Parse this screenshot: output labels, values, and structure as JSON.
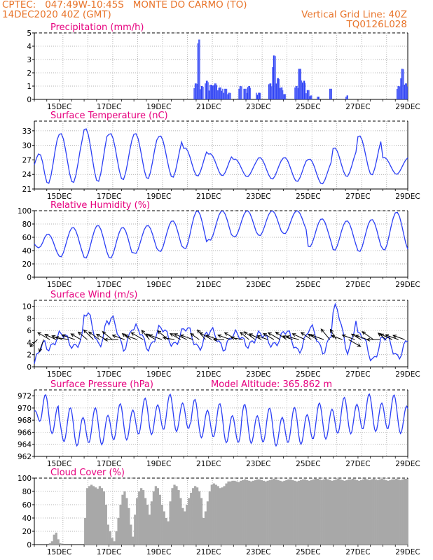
{
  "header": {
    "line1_left": "CPTEC:   047:49W-10:45S   MONTE DO CARMO (TO)",
    "line2_left": "14DEC2020 40Z (GMT)",
    "line2_right": "Vertical Grid Line: 40Z",
    "line3_right": "TQ0126L028"
  },
  "colors": {
    "header": "#e8742a",
    "title": "#e6007e",
    "series": "#2b3ff5",
    "bars": "#2b3ff5",
    "cloud": "#a8a8a8",
    "arrow": "#000000",
    "grid": "#9a9a9a"
  },
  "chart_data": [
    {
      "id": "precip",
      "type": "bar",
      "title": "Precipitation (mm/h)",
      "ylim": [
        0,
        5
      ],
      "yticks": [
        0,
        1,
        2,
        3,
        4,
        5
      ],
      "x_start_day": 14.0,
      "x_end_day": 29.0,
      "step_hours": 1,
      "xticks": [
        "15DEC",
        "17DEC",
        "19DEC",
        "21DEC",
        "23DEC",
        "25DEC",
        "27DEC",
        "29DEC"
      ],
      "events": [
        [
          20.4,
          20.55,
          1.2
        ],
        [
          20.55,
          20.65,
          4.5
        ],
        [
          20.65,
          20.8,
          1.0
        ],
        [
          20.85,
          21.0,
          1.4
        ],
        [
          21.0,
          21.15,
          1.1
        ],
        [
          21.15,
          21.35,
          1.2
        ],
        [
          21.35,
          21.55,
          0.9
        ],
        [
          21.55,
          21.75,
          0.8
        ],
        [
          21.75,
          21.9,
          0.5
        ],
        [
          22.2,
          22.35,
          1.0
        ],
        [
          22.4,
          22.55,
          0.8
        ],
        [
          22.55,
          22.7,
          1.0
        ],
        [
          22.9,
          23.1,
          0.5
        ],
        [
          23.4,
          23.55,
          1.2
        ],
        [
          23.55,
          23.7,
          3.3
        ],
        [
          23.7,
          23.85,
          1.6
        ],
        [
          23.85,
          24.0,
          0.9
        ],
        [
          24.0,
          24.1,
          0.4
        ],
        [
          24.45,
          24.6,
          1.0
        ],
        [
          24.6,
          24.75,
          2.3
        ],
        [
          24.75,
          24.9,
          1.4
        ],
        [
          24.9,
          25.05,
          0.7
        ],
        [
          25.05,
          25.15,
          0.3
        ],
        [
          25.35,
          25.45,
          0.2
        ],
        [
          25.85,
          25.95,
          0.8
        ],
        [
          26.5,
          26.6,
          0.3
        ],
        [
          28.55,
          28.7,
          1.0
        ],
        [
          28.7,
          28.85,
          2.3
        ],
        [
          28.85,
          29.0,
          1.2
        ]
      ]
    },
    {
      "id": "temp",
      "type": "line",
      "title": "Surface Temperature (nC)",
      "ylim": [
        21,
        35
      ],
      "yticks": [
        21,
        24,
        27,
        30,
        33
      ],
      "xticks": [
        "15DEC",
        "17DEC",
        "19DEC",
        "21DEC",
        "23DEC",
        "25DEC",
        "27DEC",
        "29DEC"
      ],
      "x_start_day": 14.0,
      "x_end_day": 29.0,
      "start": 26,
      "daily": [
        [
          22.0,
          32.8
        ],
        [
          22.2,
          32.5
        ],
        [
          22.4,
          33.5
        ],
        [
          22.8,
          32.5
        ],
        [
          23.0,
          32.5
        ],
        [
          23.3,
          32.0
        ],
        [
          23.6,
          29.5
        ],
        [
          23.7,
          28.3
        ],
        [
          23.5,
          27.2
        ],
        [
          23.0,
          27.5
        ],
        [
          22.5,
          27.5
        ],
        [
          22.0,
          27.2
        ],
        [
          23.5,
          29.5
        ],
        [
          23.8,
          32.0
        ],
        [
          24.0,
          27.5
        ]
      ]
    },
    {
      "id": "rh",
      "type": "line",
      "title": "Relative Humidity (%)",
      "ylim": [
        0,
        100
      ],
      "yticks": [
        0,
        20,
        40,
        60,
        80,
        100
      ],
      "xticks": [
        "15DEC",
        "17DEC",
        "19DEC",
        "21DEC",
        "23DEC",
        "25DEC",
        "27DEC",
        "29DEC"
      ],
      "x_start_day": 14.0,
      "x_end_day": 29.0,
      "start": 50,
      "daily": [
        [
          30,
          65
        ],
        [
          30,
          75
        ],
        [
          28,
          78
        ],
        [
          28,
          75
        ],
        [
          35,
          78
        ],
        [
          38,
          85
        ],
        [
          42,
          100
        ],
        [
          55,
          100
        ],
        [
          60,
          100
        ],
        [
          62,
          100
        ],
        [
          65,
          100
        ],
        [
          45,
          88
        ],
        [
          40,
          85
        ],
        [
          38,
          87
        ],
        [
          40,
          98
        ]
      ]
    },
    {
      "id": "wind",
      "type": "line",
      "title": "Surface Wind (m/s)",
      "ylim": [
        0,
        11
      ],
      "yticks": [
        0,
        2,
        4,
        6,
        8,
        10
      ],
      "xticks": [
        "15DEC",
        "17DEC",
        "19DEC",
        "21DEC",
        "23DEC",
        "25DEC",
        "27DEC",
        "29DEC"
      ],
      "x_start_day": 14.0,
      "x_end_day": 29.0,
      "start": 0.5,
      "daily": [
        [
          3.0,
          5.5
        ],
        [
          3.2,
          5.5
        ],
        [
          3.5,
          9.0
        ],
        [
          3.0,
          8.0
        ],
        [
          3.0,
          6.5
        ],
        [
          3.5,
          6.5
        ],
        [
          3.0,
          6.5
        ],
        [
          3.0,
          6.0
        ],
        [
          3.5,
          5.5
        ],
        [
          3.5,
          5.5
        ],
        [
          2.5,
          6.0
        ],
        [
          2.5,
          6.5
        ],
        [
          2.5,
          9.8
        ],
        [
          1.0,
          5.5
        ],
        [
          1.5,
          5.0
        ]
      ],
      "arrow_dirs_deg": [
        135,
        110,
        210,
        205,
        200,
        190,
        200,
        210,
        220,
        225,
        215,
        210,
        220,
        180,
        200,
        215,
        200,
        210,
        230,
        210,
        200,
        220,
        190,
        210,
        205,
        200,
        215,
        230,
        210,
        200,
        180,
        200,
        210,
        190,
        220,
        215,
        205,
        200,
        210,
        210,
        215,
        200,
        195,
        205,
        215,
        210,
        200,
        230,
        240,
        200,
        30,
        200,
        210,
        200,
        215,
        180,
        220,
        205,
        200,
        200
      ]
    },
    {
      "id": "press",
      "type": "line",
      "title": "Surface Pressure (hPa)",
      "annotation": "Model Altitude: 365.862 m",
      "ylim": [
        962,
        973
      ],
      "yticks": [
        962,
        964,
        966,
        968,
        970,
        972
      ],
      "xticks": [
        "15DEC",
        "17DEC",
        "19DEC",
        "21DEC",
        "23DEC",
        "25DEC",
        "27DEC",
        "29DEC"
      ],
      "x_start_day": 14.0,
      "x_end_day": 29.0,
      "start": 969.5
    },
    {
      "id": "cloud",
      "type": "area",
      "title": "Cloud Cover (%)",
      "ylim": [
        0,
        100
      ],
      "yticks": [
        0,
        20,
        40,
        60,
        80,
        100
      ],
      "xticks": [
        "15DEC",
        "17DEC",
        "19DEC",
        "21DEC",
        "23DEC",
        "25DEC",
        "27DEC",
        "29DEC"
      ],
      "x_start_day": 14.0,
      "x_end_day": 29.0,
      "levels": [
        0,
        0,
        0,
        0,
        0,
        0,
        0,
        2,
        5,
        15,
        18,
        8,
        2,
        0,
        0,
        0,
        0,
        0,
        0,
        0,
        0,
        0,
        0,
        0,
        40,
        85,
        88,
        90,
        88,
        86,
        84,
        88,
        85,
        80,
        60,
        30,
        20,
        10,
        5,
        20,
        40,
        60,
        75,
        80,
        70,
        55,
        30,
        12,
        45,
        70,
        80,
        85,
        82,
        70,
        60,
        45,
        65,
        80,
        88,
        85,
        75,
        60,
        50,
        40,
        35,
        65,
        85,
        90,
        88,
        82,
        70,
        55,
        50,
        60,
        70,
        78,
        85,
        88,
        86,
        80,
        70,
        40,
        50,
        65,
        80,
        90,
        92,
        90,
        88,
        85,
        86,
        88,
        92,
        95,
        95,
        96,
        96,
        95,
        94,
        96,
        97,
        98,
        97,
        96,
        95,
        96,
        97,
        98,
        98,
        97,
        96,
        95,
        96,
        97,
        98,
        99,
        98,
        97,
        96,
        95,
        96,
        97,
        98,
        98,
        97,
        96,
        95,
        96,
        97,
        98,
        98,
        97,
        96,
        97,
        98,
        99,
        99,
        98,
        97,
        98,
        99,
        98,
        97,
        96,
        97,
        98,
        99,
        98,
        97,
        96,
        97,
        98,
        98,
        99,
        98,
        97,
        96,
        97,
        98,
        99,
        98,
        97,
        98,
        99,
        98,
        97,
        98,
        99,
        98,
        97,
        96,
        97,
        98,
        98,
        99,
        98,
        97,
        98,
        99,
        99
      ]
    }
  ]
}
